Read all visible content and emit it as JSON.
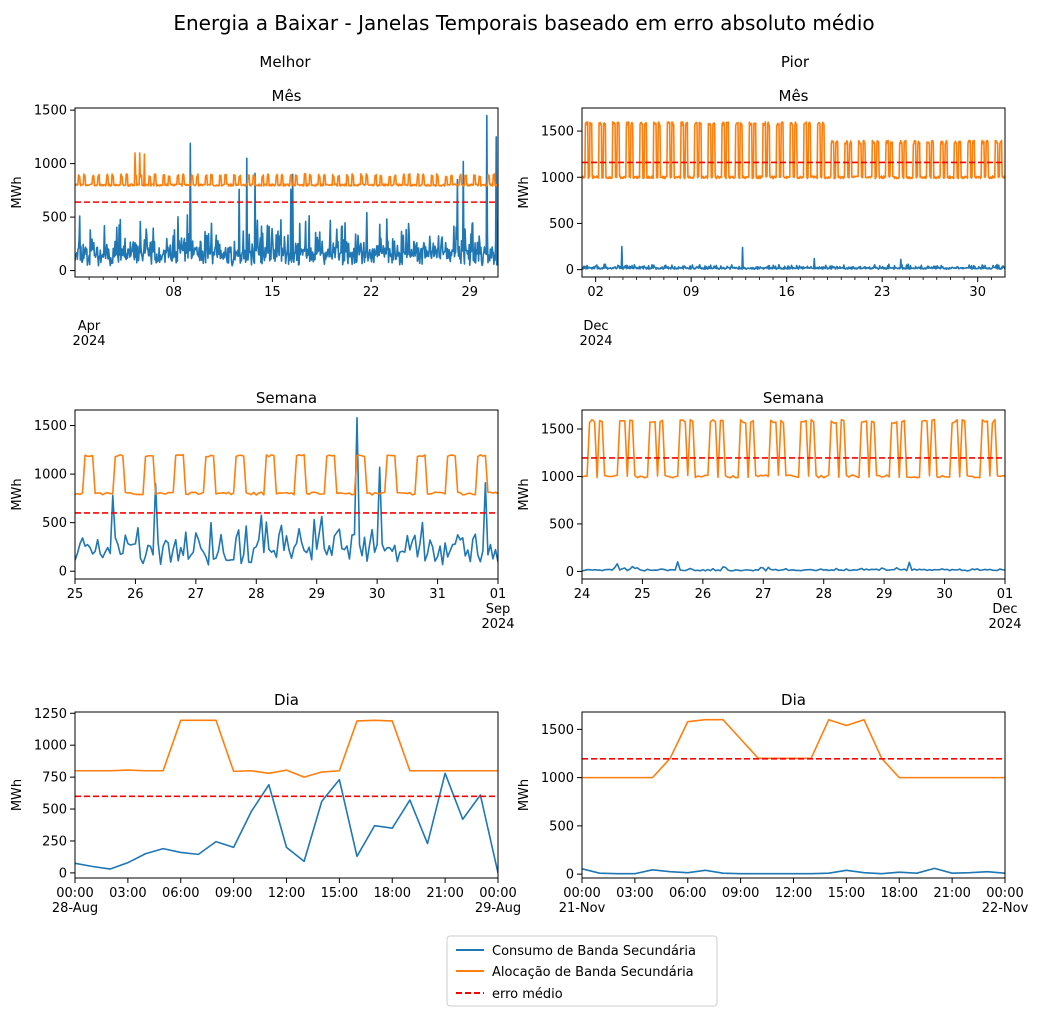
{
  "figure": {
    "title": "Energia a Baixar - Janelas Temporais baseado em erro absoluto médio",
    "col_titles": [
      "Melhor",
      "Pior"
    ]
  },
  "legend": {
    "entries": [
      {
        "label": "Consumo de Banda Secundária",
        "color": "#1f77b4",
        "style": "solid"
      },
      {
        "label": "Alocação de Banda Secundária",
        "color": "#ff7f0e",
        "style": "solid"
      },
      {
        "label": "erro médio",
        "color": "#ff0000",
        "style": "dashed"
      }
    ]
  },
  "chart_data": [
    {
      "type": "line",
      "title": "Mês",
      "ylabel": "MWh",
      "xlim": [
        0,
        720
      ],
      "ylim": [
        -60,
        1520
      ],
      "yticks": [
        0,
        500,
        1000,
        1500
      ],
      "xticks": [
        {
          "x": 168,
          "label": "08"
        },
        {
          "x": 336,
          "label": "15"
        },
        {
          "x": 504,
          "label": "22"
        },
        {
          "x": 672,
          "label": "29"
        }
      ],
      "minor_xticks": [
        24,
        48,
        72,
        96,
        120,
        144,
        192,
        216,
        240,
        264,
        288,
        312,
        360,
        384,
        408,
        432,
        456,
        480,
        528,
        552,
        576,
        600,
        624,
        648,
        696
      ],
      "corner_label": "Apr\n2024",
      "mean_error": 640,
      "series": [
        {
          "name": "Consumo de Banda Secundária",
          "color": "#1f77b4",
          "gen": "noise",
          "n": 720,
          "base": 150,
          "amp": 350,
          "seed": 11,
          "spikes": [
            [
              8,
              510
            ],
            [
              50,
              420
            ],
            [
              196,
              1190
            ],
            [
              279,
              760
            ],
            [
              292,
              1050
            ],
            [
              306,
              910
            ],
            [
              367,
              760
            ],
            [
              370,
              900
            ],
            [
              650,
              850
            ],
            [
              660,
              1020
            ],
            [
              700,
              1450
            ],
            [
              716,
              1250
            ]
          ]
        },
        {
          "name": "Alocação de Banda Secundária",
          "color": "#ff7f0e",
          "gen": "step",
          "n": 720,
          "base": 800,
          "high": 890,
          "period": 24,
          "seed": 3,
          "spikes": [
            [
              102,
              1100
            ],
            [
              110,
              1100
            ],
            [
              118,
              1090
            ]
          ]
        }
      ]
    },
    {
      "type": "line",
      "title": "Mês",
      "ylabel": "MWh",
      "xlim": [
        0,
        744
      ],
      "ylim": [
        -80,
        1750
      ],
      "yticks": [
        0,
        500,
        1000,
        1500
      ],
      "xticks": [
        {
          "x": 24,
          "label": "02"
        },
        {
          "x": 192,
          "label": "09"
        },
        {
          "x": 360,
          "label": "16"
        },
        {
          "x": 528,
          "label": "23"
        },
        {
          "x": 696,
          "label": "30"
        }
      ],
      "minor_xticks": [
        48,
        72,
        96,
        120,
        144,
        168,
        216,
        240,
        264,
        288,
        312,
        336,
        384,
        408,
        432,
        456,
        480,
        504,
        552,
        576,
        600,
        624,
        648,
        672,
        720
      ],
      "corner_label": "Dec\n2024",
      "mean_error": 1160,
      "series": [
        {
          "name": "Consumo de Banda Secundária",
          "color": "#1f77b4",
          "gen": "noise",
          "n": 744,
          "base": 15,
          "amp": 40,
          "seed": 7,
          "spikes": [
            [
              70,
              250
            ],
            [
              282,
              240
            ],
            [
              408,
              120
            ],
            [
              560,
              110
            ]
          ]
        },
        {
          "name": "Alocação de Banda Secundária",
          "color": "#ff7f0e",
          "gen": "square",
          "n": 744,
          "low": 1000,
          "high": 1600,
          "high2": 1400,
          "switch": 430,
          "period": 24,
          "seed": 5
        }
      ]
    },
    {
      "type": "line",
      "title": "Semana",
      "ylabel": "MWh",
      "xlim": [
        0,
        168
      ],
      "ylim": [
        -80,
        1660
      ],
      "yticks": [
        0,
        500,
        1000,
        1500
      ],
      "xticks": [
        {
          "x": 0,
          "label": "25"
        },
        {
          "x": 24,
          "label": "26"
        },
        {
          "x": 48,
          "label": "27"
        },
        {
          "x": 72,
          "label": "28"
        },
        {
          "x": 96,
          "label": "29"
        },
        {
          "x": 120,
          "label": "30"
        },
        {
          "x": 144,
          "label": "31"
        },
        {
          "x": 168,
          "label": "01\nSep\n2024"
        }
      ],
      "mean_error": 600,
      "series": [
        {
          "name": "Consumo de Banda Secundária",
          "color": "#1f77b4",
          "gen": "noise",
          "n": 169,
          "base": 220,
          "amp": 420,
          "seed": 21,
          "spikes": [
            [
              15,
              780
            ],
            [
              32,
              900
            ],
            [
              112,
              1580
            ],
            [
              121,
              1070
            ],
            [
              163,
              910
            ]
          ]
        },
        {
          "name": "Alocação de Banda Secundária",
          "color": "#ff7f0e",
          "gen": "blocks",
          "n": 169,
          "base": 800,
          "high": 1190,
          "period": 12,
          "seed": 2
        }
      ]
    },
    {
      "type": "line",
      "title": "Semana",
      "ylabel": "MWh",
      "xlim": [
        0,
        168
      ],
      "ylim": [
        -80,
        1700
      ],
      "yticks": [
        0,
        500,
        1000,
        1500
      ],
      "xticks": [
        {
          "x": 0,
          "label": "24"
        },
        {
          "x": 24,
          "label": "25"
        },
        {
          "x": 48,
          "label": "26"
        },
        {
          "x": 72,
          "label": "27"
        },
        {
          "x": 96,
          "label": "28"
        },
        {
          "x": 120,
          "label": "29"
        },
        {
          "x": 144,
          "label": "30"
        },
        {
          "x": 168,
          "label": "01\nDec\n2024"
        }
      ],
      "mean_error": 1195,
      "series": [
        {
          "name": "Consumo de Banda Secundária",
          "color": "#1f77b4",
          "gen": "noise",
          "n": 169,
          "base": 15,
          "amp": 35,
          "seed": 9,
          "spikes": [
            [
              14,
              80
            ],
            [
              38,
              100
            ],
            [
              130,
              95
            ]
          ]
        },
        {
          "name": "Alocação de Banda Secundária",
          "color": "#ff7f0e",
          "gen": "square",
          "n": 169,
          "low": 1000,
          "high": 1600,
          "high2": 1600,
          "switch": 999,
          "period": 12,
          "seed": 4
        }
      ]
    },
    {
      "type": "line",
      "title": "Dia",
      "ylabel": "MWh",
      "xlim": [
        0,
        24
      ],
      "ylim": [
        -40,
        1260
      ],
      "yticks": [
        0,
        250,
        500,
        750,
        1000,
        1250
      ],
      "xticks": [
        {
          "x": 0,
          "label": "00:00\n28-Aug"
        },
        {
          "x": 3,
          "label": "03:00"
        },
        {
          "x": 6,
          "label": "06:00"
        },
        {
          "x": 9,
          "label": "09:00"
        },
        {
          "x": 12,
          "label": "12:00"
        },
        {
          "x": 15,
          "label": "15:00"
        },
        {
          "x": 18,
          "label": "18:00"
        },
        {
          "x": 21,
          "label": "21:00"
        },
        {
          "x": 24,
          "label": "00:00\n29-Aug"
        }
      ],
      "mean_error": 600,
      "series": [
        {
          "name": "Consumo de Banda Secundária",
          "color": "#1f77b4",
          "x": [
            0,
            1,
            2,
            3,
            4,
            5,
            6,
            7,
            8,
            9,
            10,
            11,
            12,
            13,
            14,
            15,
            16,
            17,
            18,
            19,
            20,
            21,
            22,
            23,
            24
          ],
          "values": [
            75,
            50,
            30,
            80,
            150,
            190,
            160,
            145,
            245,
            200,
            480,
            690,
            200,
            90,
            560,
            730,
            130,
            370,
            350,
            570,
            230,
            780,
            420,
            610,
            0
          ]
        },
        {
          "name": "Alocação de Banda Secundária",
          "color": "#ff7f0e",
          "x": [
            0,
            1,
            2,
            3,
            4,
            5,
            6,
            7,
            8,
            9,
            10,
            11,
            12,
            13,
            14,
            15,
            16,
            17,
            18,
            19,
            20,
            21,
            22,
            23,
            24
          ],
          "values": [
            800,
            800,
            800,
            805,
            800,
            800,
            1195,
            1195,
            1195,
            795,
            800,
            780,
            805,
            750,
            790,
            800,
            1190,
            1195,
            1190,
            800,
            800,
            800,
            800,
            800,
            800
          ]
        }
      ]
    },
    {
      "type": "line",
      "title": "Dia",
      "ylabel": "MWh",
      "xlim": [
        0,
        24
      ],
      "ylim": [
        -40,
        1680
      ],
      "yticks": [
        0,
        500,
        1000,
        1500
      ],
      "xticks": [
        {
          "x": 0,
          "label": "00:00\n21-Nov"
        },
        {
          "x": 3,
          "label": "03:00"
        },
        {
          "x": 6,
          "label": "06:00"
        },
        {
          "x": 9,
          "label": "09:00"
        },
        {
          "x": 12,
          "label": "12:00"
        },
        {
          "x": 15,
          "label": "15:00"
        },
        {
          "x": 18,
          "label": "18:00"
        },
        {
          "x": 21,
          "label": "21:00"
        },
        {
          "x": 24,
          "label": "00:00\n22-Nov"
        }
      ],
      "mean_error": 1195,
      "series": [
        {
          "name": "Consumo de Banda Secundária",
          "color": "#1f77b4",
          "x": [
            0,
            1,
            2,
            3,
            4,
            5,
            6,
            7,
            8,
            9,
            10,
            11,
            12,
            13,
            14,
            15,
            16,
            17,
            18,
            19,
            20,
            21,
            22,
            23,
            24
          ],
          "values": [
            55,
            10,
            5,
            5,
            45,
            25,
            15,
            40,
            10,
            5,
            5,
            5,
            5,
            5,
            10,
            40,
            15,
            5,
            20,
            10,
            60,
            10,
            15,
            25,
            10
          ]
        },
        {
          "name": "Alocação de Banda Secundária",
          "color": "#ff7f0e",
          "x": [
            0,
            1,
            2,
            3,
            4,
            5,
            6,
            7,
            8,
            9,
            10,
            11,
            12,
            13,
            14,
            15,
            16,
            17,
            18,
            19,
            20,
            21,
            22,
            23,
            24
          ],
          "values": [
            1000,
            1000,
            1000,
            1000,
            1000,
            1200,
            1580,
            1600,
            1600,
            1400,
            1200,
            1200,
            1200,
            1200,
            1600,
            1540,
            1600,
            1200,
            1000,
            1000,
            1000,
            1000,
            1000,
            1000,
            1000
          ]
        }
      ]
    }
  ]
}
